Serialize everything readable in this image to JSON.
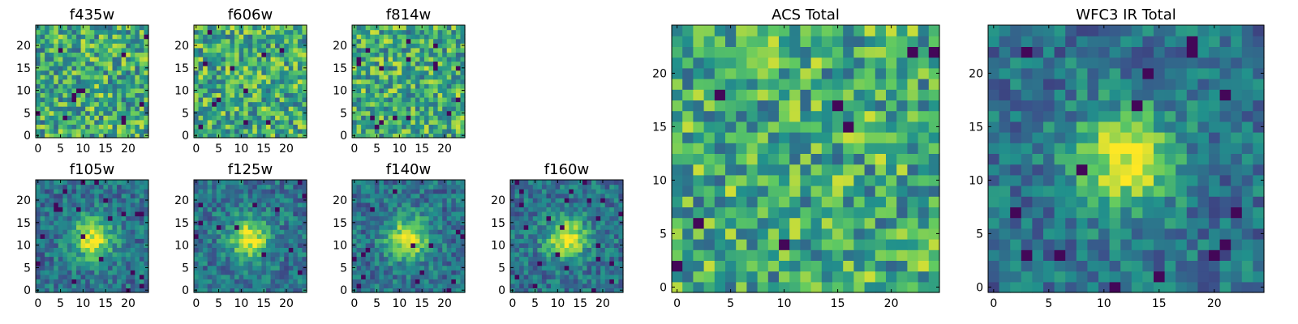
{
  "chart_data": [
    {
      "type": "heatmap",
      "title": "f435w",
      "pattern": "noise",
      "grid_size": 25,
      "xlim": [
        0,
        24
      ],
      "ylim": [
        0,
        24
      ],
      "xticks": [
        "0",
        "5",
        "10",
        "15",
        "20"
      ],
      "yticks": [
        "0",
        "5",
        "10",
        "15",
        "20"
      ]
    },
    {
      "type": "heatmap",
      "title": "f606w",
      "pattern": "noise",
      "grid_size": 25,
      "xlim": [
        0,
        24
      ],
      "ylim": [
        0,
        24
      ],
      "xticks": [
        "0",
        "5",
        "10",
        "15",
        "20"
      ],
      "yticks": [
        "0",
        "5",
        "10",
        "15",
        "20"
      ]
    },
    {
      "type": "heatmap",
      "title": "f814w",
      "pattern": "noise",
      "grid_size": 25,
      "xlim": [
        0,
        24
      ],
      "ylim": [
        0,
        24
      ],
      "xticks": [
        "0",
        "5",
        "10",
        "15",
        "20"
      ],
      "yticks": [
        "0",
        "5",
        "10",
        "15",
        "20"
      ]
    },
    {
      "type": "heatmap",
      "title": "f105w",
      "pattern": "source",
      "source_center": [
        12,
        11.5
      ],
      "grid_size": 25,
      "xlim": [
        0,
        24
      ],
      "ylim": [
        0,
        24
      ],
      "xticks": [
        "0",
        "5",
        "10",
        "15",
        "20"
      ],
      "yticks": [
        "0",
        "5",
        "10",
        "15",
        "20"
      ]
    },
    {
      "type": "heatmap",
      "title": "f125w",
      "pattern": "source",
      "source_center": [
        12,
        11.5
      ],
      "grid_size": 25,
      "xlim": [
        0,
        24
      ],
      "ylim": [
        0,
        24
      ],
      "xticks": [
        "0",
        "5",
        "10",
        "15",
        "20"
      ],
      "yticks": [
        "0",
        "5",
        "10",
        "15",
        "20"
      ]
    },
    {
      "type": "heatmap",
      "title": "f140w",
      "pattern": "source",
      "source_center": [
        12,
        11.5
      ],
      "grid_size": 25,
      "xlim": [
        0,
        24
      ],
      "ylim": [
        0,
        24
      ],
      "xticks": [
        "0",
        "5",
        "10",
        "15",
        "20"
      ],
      "yticks": [
        "0",
        "5",
        "10",
        "15",
        "20"
      ]
    },
    {
      "type": "heatmap",
      "title": "f160w",
      "pattern": "source",
      "source_center": [
        12,
        11.5
      ],
      "grid_size": 25,
      "xlim": [
        0,
        24
      ],
      "ylim": [
        0,
        24
      ],
      "xticks": [
        "0",
        "5",
        "10",
        "15",
        "20"
      ],
      "yticks": [
        "0",
        "5",
        "10",
        "15",
        "20"
      ]
    },
    {
      "type": "heatmap",
      "title": "ACS Total",
      "pattern": "noise",
      "grid_size": 25,
      "xlim": [
        0,
        24
      ],
      "ylim": [
        0,
        24
      ],
      "xticks": [
        "0",
        "5",
        "10",
        "15",
        "20"
      ],
      "yticks": [
        "0",
        "5",
        "10",
        "15",
        "20"
      ]
    },
    {
      "type": "heatmap",
      "title": "WFC3 IR Total",
      "pattern": "source",
      "source_center": [
        12,
        12
      ],
      "grid_size": 25,
      "xlim": [
        0,
        24
      ],
      "ylim": [
        0,
        24
      ],
      "xticks": [
        "0",
        "5",
        "10",
        "15",
        "20"
      ],
      "yticks": [
        "0",
        "5",
        "10",
        "15",
        "20"
      ]
    }
  ],
  "colormap": [
    "#440154",
    "#3b528b",
    "#21918c",
    "#5ec962",
    "#fde725"
  ]
}
